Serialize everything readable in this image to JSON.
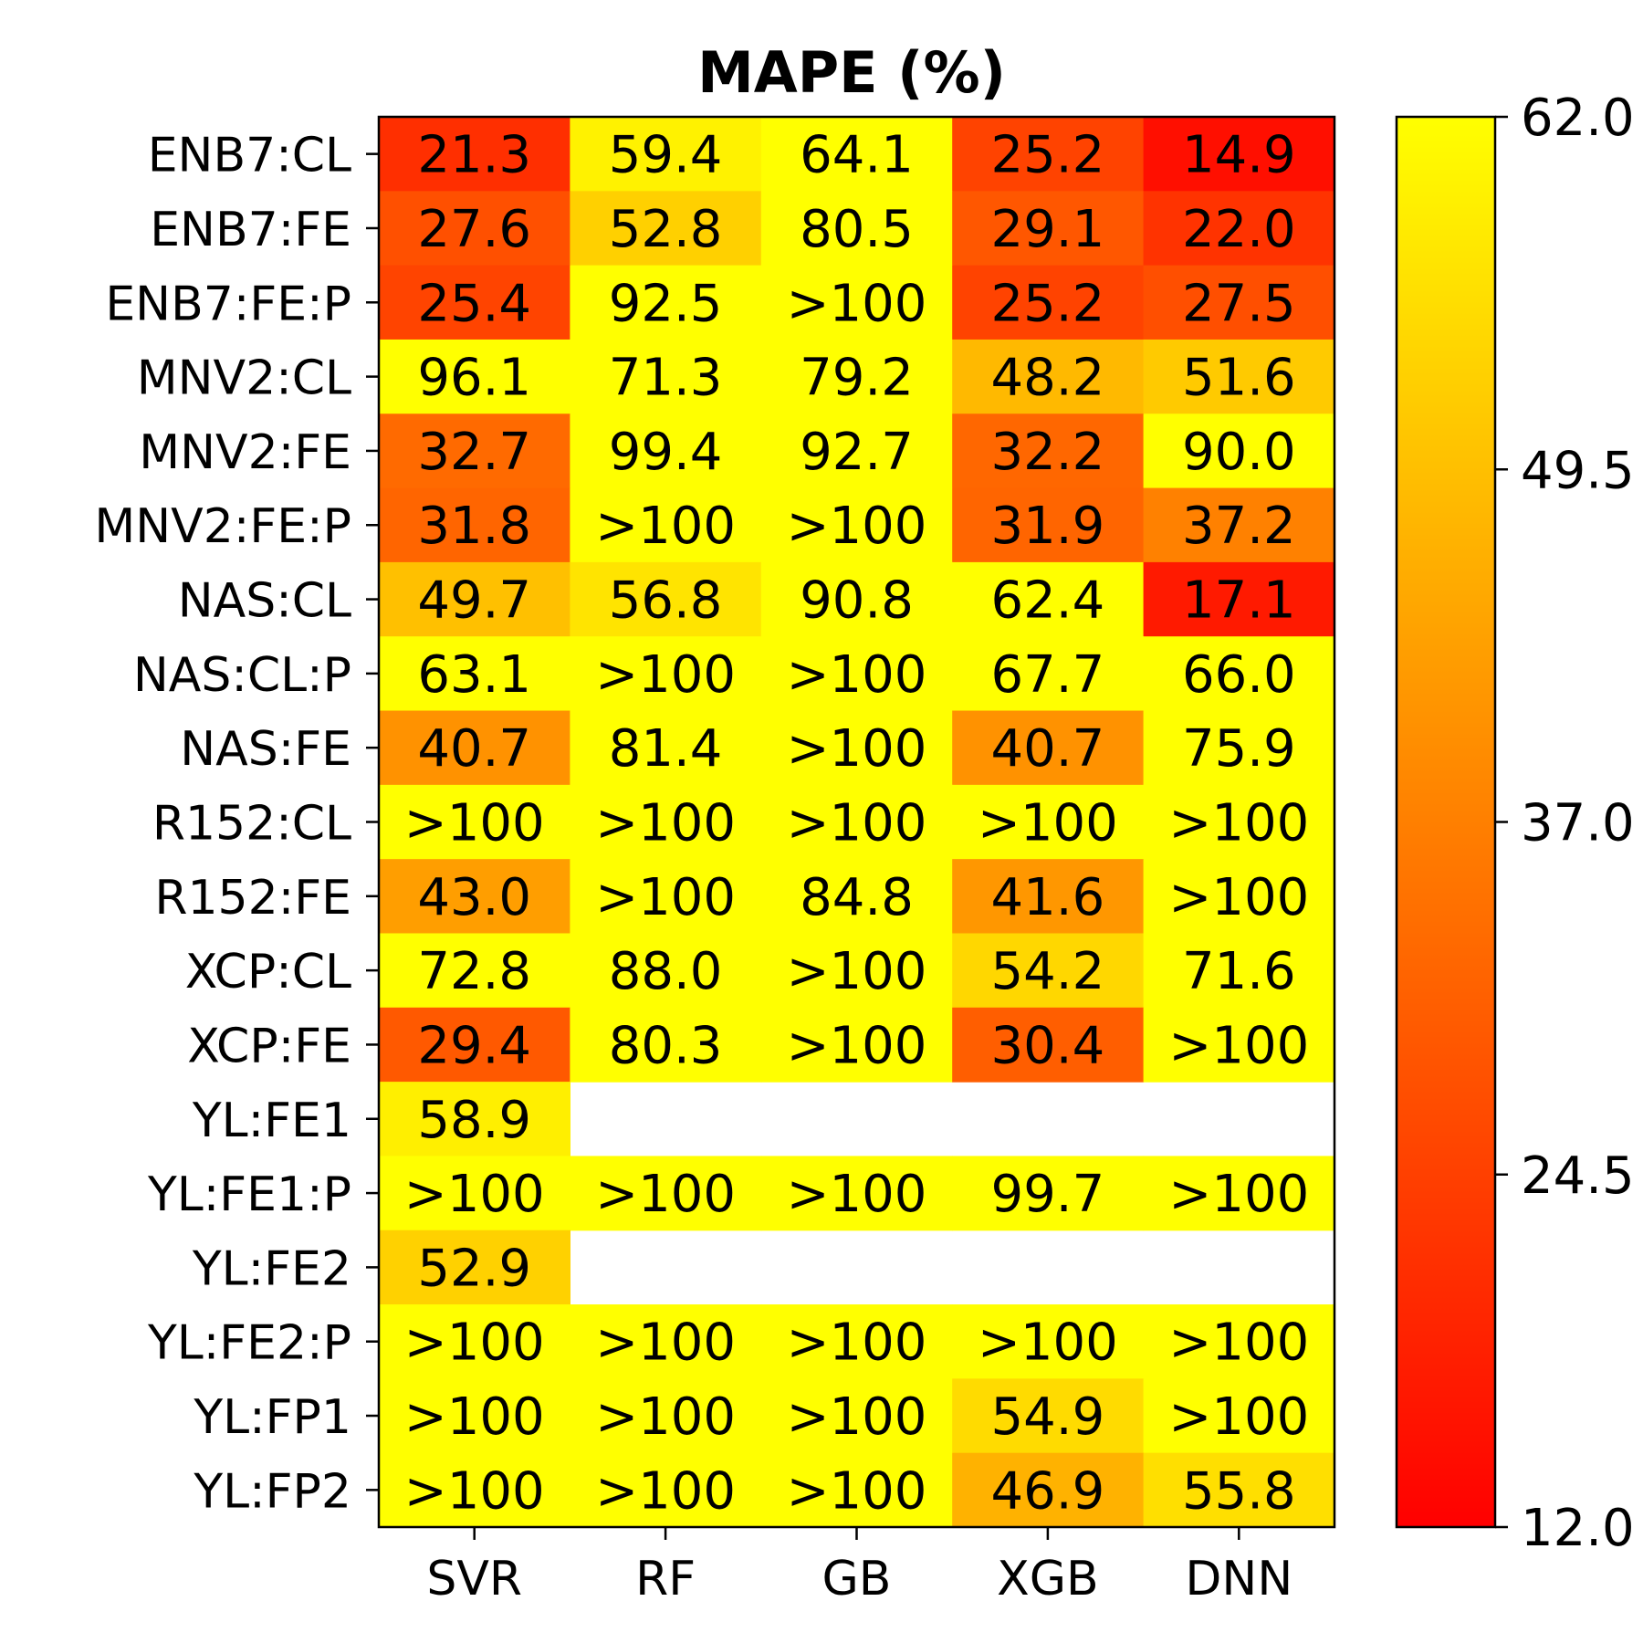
{
  "chart_data": {
    "type": "heatmap",
    "title": "MAPE (%)",
    "columns": [
      "SVR",
      "RF",
      "GB",
      "XGB",
      "DNN"
    ],
    "rows": [
      "ENB7:CL",
      "ENB7:FE",
      "ENB7:FE:P",
      "MNV2:CL",
      "MNV2:FE",
      "MNV2:FE:P",
      "NAS:CL",
      "NAS:CL:P",
      "NAS:FE",
      "R152:CL",
      "R152:FE",
      "XCP:CL",
      "XCP:FE",
      "YL:FE1",
      "YL:FE1:P",
      "YL:FE2",
      "YL:FE2:P",
      "YL:FP1",
      "YL:FP2"
    ],
    "values": [
      [
        21.3,
        59.4,
        64.1,
        25.2,
        14.9
      ],
      [
        27.6,
        52.8,
        80.5,
        29.1,
        22.0
      ],
      [
        25.4,
        92.5,
        ">100",
        25.2,
        27.5
      ],
      [
        96.1,
        71.3,
        79.2,
        48.2,
        51.6
      ],
      [
        32.7,
        99.4,
        92.7,
        32.2,
        90.0
      ],
      [
        31.8,
        ">100",
        ">100",
        31.9,
        37.2
      ],
      [
        49.7,
        56.8,
        90.8,
        62.4,
        17.1
      ],
      [
        63.1,
        ">100",
        ">100",
        67.7,
        66.0
      ],
      [
        40.7,
        81.4,
        ">100",
        40.7,
        75.9
      ],
      [
        ">100",
        ">100",
        ">100",
        ">100",
        ">100"
      ],
      [
        43.0,
        ">100",
        84.8,
        41.6,
        ">100"
      ],
      [
        72.8,
        88.0,
        ">100",
        54.2,
        71.6
      ],
      [
        29.4,
        80.3,
        ">100",
        30.4,
        ">100"
      ],
      [
        58.9,
        null,
        null,
        null,
        null
      ],
      [
        ">100",
        ">100",
        ">100",
        99.7,
        ">100"
      ],
      [
        52.9,
        null,
        null,
        null,
        null
      ],
      [
        ">100",
        ">100",
        ">100",
        ">100",
        ">100"
      ],
      [
        ">100",
        ">100",
        ">100",
        54.9,
        ">100"
      ],
      [
        ">100",
        ">100",
        ">100",
        46.9,
        55.8
      ]
    ],
    "colorbar": {
      "min": 12.0,
      "max": 62.0,
      "ticks": [
        "12.0",
        "24.5",
        "37.0",
        "49.5",
        "62.0"
      ],
      "colormap": "autumn",
      "low_color": "#ff0000",
      "high_color": "#ffff00"
    }
  }
}
